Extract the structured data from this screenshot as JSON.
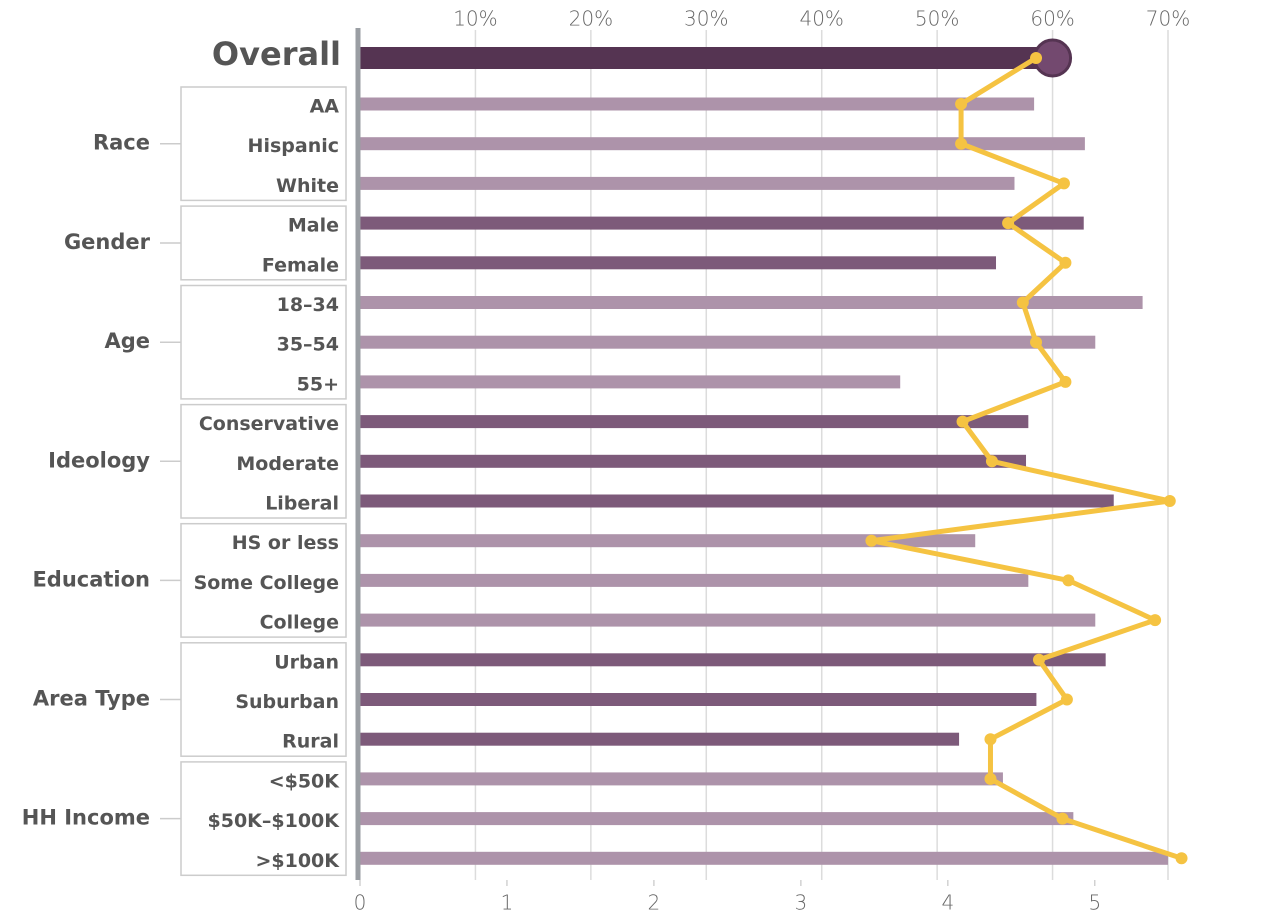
{
  "chart_data": {
    "type": "bar",
    "line_color": "#f5c342",
    "overall": {
      "name": "Overall",
      "value": 60,
      "line_value": 4.6,
      "color": "#553452"
    },
    "groups": [
      {
        "name": "Race",
        "color": "#ad93aa",
        "categories": [
          "AA",
          "Hispanic",
          "White"
        ],
        "values": [
          58.4,
          62.8,
          56.7
        ],
        "line_values": [
          4.09,
          4.09,
          4.79
        ]
      },
      {
        "name": "Gender",
        "color": "#7d5a7a",
        "categories": [
          "Male",
          "Female"
        ],
        "values": [
          62.7,
          55.1
        ],
        "line_values": [
          4.41,
          4.8
        ]
      },
      {
        "name": "Age",
        "color": "#ad93aa",
        "categories": [
          "18–34",
          "35–54",
          "55+"
        ],
        "values": [
          67.8,
          63.7,
          46.8
        ],
        "line_values": [
          4.51,
          4.6,
          4.8
        ]
      },
      {
        "name": "Ideology",
        "color": "#7d5a7a",
        "categories": [
          "Conservative",
          "Moderate",
          "Liberal"
        ],
        "values": [
          57.9,
          57.7,
          65.3
        ],
        "line_values": [
          4.1,
          4.3,
          5.51
        ]
      },
      {
        "name": "Education",
        "color": "#ad93aa",
        "categories": [
          "HS or less",
          "Some College",
          "College"
        ],
        "values": [
          53.3,
          57.9,
          63.7
        ],
        "line_values": [
          3.48,
          4.82,
          5.41
        ]
      },
      {
        "name": "Area Type",
        "color": "#7d5a7a",
        "categories": [
          "Urban",
          "Suburban",
          "Rural"
        ],
        "values": [
          64.6,
          58.6,
          51.9
        ],
        "line_values": [
          4.62,
          4.81,
          4.29
        ]
      },
      {
        "name": "HH Income",
        "color": "#ad93aa",
        "categories": [
          "<$50K",
          "$50K–$100K",
          ">$100K"
        ],
        "values": [
          55.7,
          61.8,
          70
        ],
        "line_values": [
          4.29,
          4.78,
          5.59
        ]
      }
    ],
    "xlim": [
      0,
      70
    ],
    "xticks": [
      {
        "value": 10,
        "label": "10%"
      },
      {
        "value": 20,
        "label": "20%"
      },
      {
        "value": 30,
        "label": "30%"
      },
      {
        "value": 40,
        "label": "40%"
      },
      {
        "value": 50,
        "label": "50%"
      },
      {
        "value": 60,
        "label": "60%"
      },
      {
        "value": 70,
        "label": "70%"
      }
    ],
    "x2lim": [
      0,
      5.6
    ],
    "x2ticks": [
      0,
      1,
      2,
      3,
      4,
      5
    ],
    "grid": true
  }
}
